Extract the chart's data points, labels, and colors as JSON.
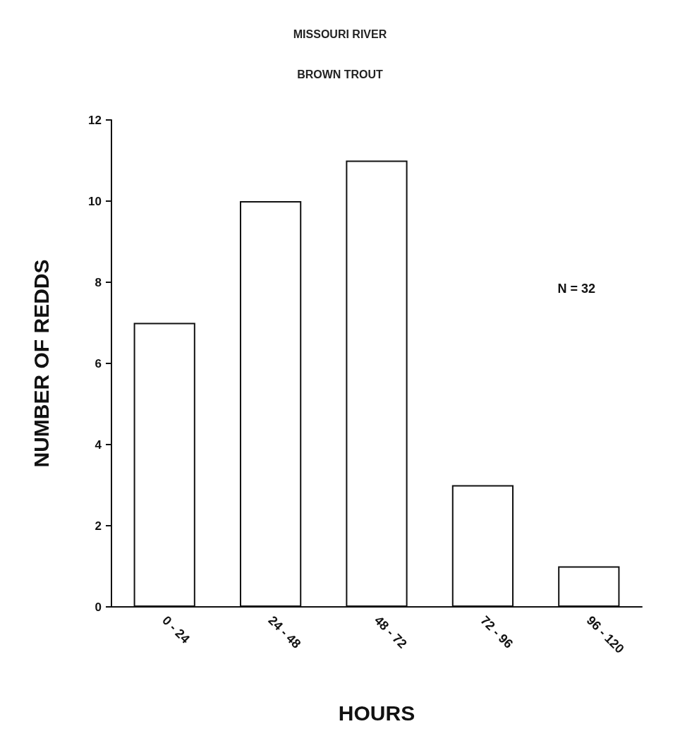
{
  "chart_data": {
    "type": "bar",
    "title": "MISSOURI RIVER",
    "subtitle": "BROWN TROUT",
    "xlabel": "HOURS",
    "ylabel": "NUMBER OF REDDS",
    "categories": [
      "0 - 24",
      "24 - 48",
      "48 - 72",
      "72 - 96",
      "96 - 120"
    ],
    "values": [
      7,
      10,
      11,
      3,
      1
    ],
    "color": "#ffffff",
    "ylim": [
      0,
      12
    ],
    "yticks": [
      0,
      2,
      4,
      6,
      8,
      10,
      12
    ],
    "grid": false,
    "annotations": [
      "N = 32"
    ]
  }
}
